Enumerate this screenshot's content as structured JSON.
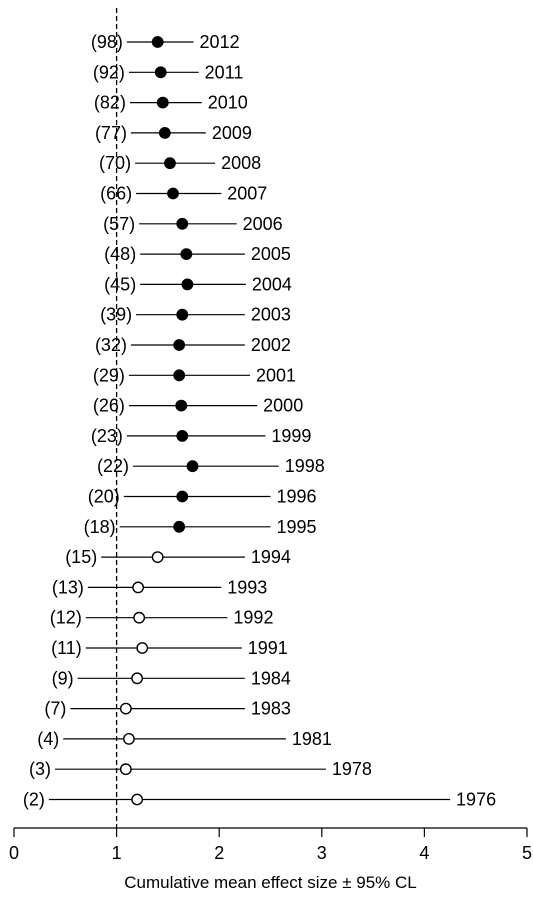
{
  "chart_data": {
    "type": "forest",
    "xlabel": "Cumulative mean effect size ± 95% CL",
    "ylabel": "",
    "title": "",
    "xlim": [
      0,
      5
    ],
    "x_ticks": [
      "0",
      "1",
      "2",
      "3",
      "4",
      "5"
    ],
    "reference_line": 1,
    "grid": false,
    "marker_fill": {
      "filled": "#000000",
      "open": "#ffffff"
    },
    "rows": [
      {
        "year": "2012",
        "n_label": "(98)",
        "mean": 1.4,
        "lower": 1.1,
        "upper": 1.75,
        "filled": true
      },
      {
        "year": "2011",
        "n_label": "(92)",
        "mean": 1.43,
        "lower": 1.12,
        "upper": 1.8,
        "filled": true
      },
      {
        "year": "2010",
        "n_label": "(82)",
        "mean": 1.45,
        "lower": 1.13,
        "upper": 1.83,
        "filled": true
      },
      {
        "year": "2009",
        "n_label": "(77)",
        "mean": 1.47,
        "lower": 1.14,
        "upper": 1.87,
        "filled": true
      },
      {
        "year": "2008",
        "n_label": "(70)",
        "mean": 1.52,
        "lower": 1.18,
        "upper": 1.96,
        "filled": true
      },
      {
        "year": "2007",
        "n_label": "(66)",
        "mean": 1.55,
        "lower": 1.19,
        "upper": 2.02,
        "filled": true
      },
      {
        "year": "2006",
        "n_label": "(57)",
        "mean": 1.64,
        "lower": 1.22,
        "upper": 2.17,
        "filled": true
      },
      {
        "year": "2005",
        "n_label": "(48)",
        "mean": 1.68,
        "lower": 1.23,
        "upper": 2.25,
        "filled": true
      },
      {
        "year": "2004",
        "n_label": "(45)",
        "mean": 1.69,
        "lower": 1.23,
        "upper": 2.26,
        "filled": true
      },
      {
        "year": "2003",
        "n_label": "(39)",
        "mean": 1.64,
        "lower": 1.19,
        "upper": 2.25,
        "filled": true
      },
      {
        "year": "2002",
        "n_label": "(32)",
        "mean": 1.61,
        "lower": 1.14,
        "upper": 2.25,
        "filled": true
      },
      {
        "year": "2001",
        "n_label": "(29)",
        "mean": 1.61,
        "lower": 1.12,
        "upper": 2.3,
        "filled": true
      },
      {
        "year": "2000",
        "n_label": "(26)",
        "mean": 1.63,
        "lower": 1.12,
        "upper": 2.37,
        "filled": true
      },
      {
        "year": "1999",
        "n_label": "(23)",
        "mean": 1.64,
        "lower": 1.1,
        "upper": 2.45,
        "filled": true
      },
      {
        "year": "1998",
        "n_label": "(22)",
        "mean": 1.74,
        "lower": 1.16,
        "upper": 2.58,
        "filled": true
      },
      {
        "year": "1996",
        "n_label": "(20)",
        "mean": 1.64,
        "lower": 1.07,
        "upper": 2.5,
        "filled": true
      },
      {
        "year": "1995",
        "n_label": "(18)",
        "mean": 1.61,
        "lower": 1.03,
        "upper": 2.5,
        "filled": true
      },
      {
        "year": "1994",
        "n_label": "(15)",
        "mean": 1.4,
        "lower": 0.85,
        "upper": 2.25,
        "filled": false
      },
      {
        "year": "1993",
        "n_label": "(13)",
        "mean": 1.21,
        "lower": 0.72,
        "upper": 2.02,
        "filled": false
      },
      {
        "year": "1992",
        "n_label": "(12)",
        "mean": 1.22,
        "lower": 0.7,
        "upper": 2.08,
        "filled": false
      },
      {
        "year": "1991",
        "n_label": "(11)",
        "mean": 1.25,
        "lower": 0.7,
        "upper": 2.22,
        "filled": false
      },
      {
        "year": "1984",
        "n_label": "(9)",
        "mean": 1.2,
        "lower": 0.62,
        "upper": 2.25,
        "filled": false
      },
      {
        "year": "1983",
        "n_label": "(7)",
        "mean": 1.09,
        "lower": 0.55,
        "upper": 2.25,
        "filled": false
      },
      {
        "year": "1981",
        "n_label": "(4)",
        "mean": 1.12,
        "lower": 0.48,
        "upper": 2.65,
        "filled": false
      },
      {
        "year": "1978",
        "n_label": "(3)",
        "mean": 1.09,
        "lower": 0.4,
        "upper": 3.04,
        "filled": false
      },
      {
        "year": "1976",
        "n_label": "(2)",
        "mean": 1.2,
        "lower": 0.34,
        "upper": 4.25,
        "filled": false
      }
    ]
  }
}
